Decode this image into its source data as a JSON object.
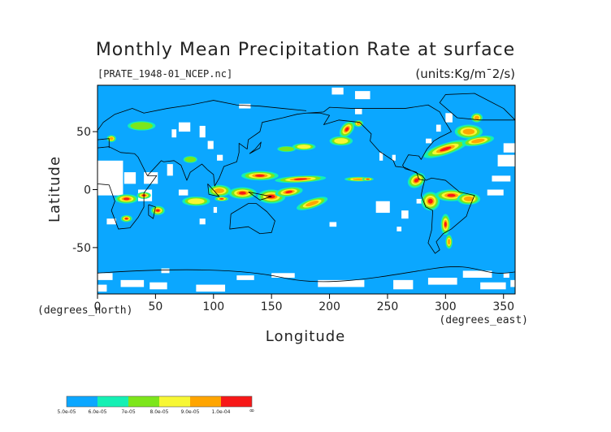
{
  "chart_data": {
    "type": "heatmap",
    "title": "Monthly Mean Precipitation Rate at surface",
    "source_file": "[PRATE_1948-01_NCEP.nc]",
    "units_label": "(units:Kg/m¯2/s)",
    "xlabel": "Longitude",
    "ylabel": "Latitude",
    "x_unit_label": "(degrees_east)",
    "y_unit_label": "(degrees_north)",
    "xlim": [
      0,
      360
    ],
    "ylim": [
      -90,
      90
    ],
    "x_ticks": [
      0,
      50,
      100,
      150,
      200,
      250,
      300,
      350
    ],
    "y_ticks": [
      -50,
      0,
      50
    ],
    "legend_placement": "bottom-left",
    "colorbar": {
      "levels": [
        {
          "label": "5.0e-05",
          "color": "#0ba7ff"
        },
        {
          "label": "6.0e-05",
          "color": "#14f0b4"
        },
        {
          "label": "7e-05",
          "color": "#7de61b"
        },
        {
          "label": "8.0e-05",
          "color": "#f7f734"
        },
        {
          "label": "9.0e-05",
          "color": "#ffa500"
        },
        {
          "label": "1.0e-04",
          "color": "#f71818"
        }
      ],
      "end_label": "∞"
    }
  }
}
